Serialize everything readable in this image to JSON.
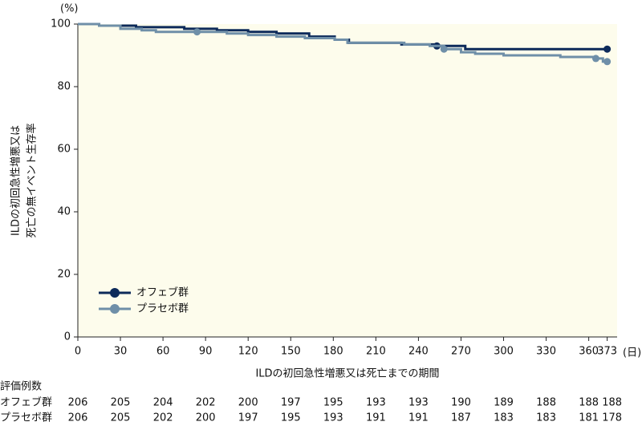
{
  "chart_data": {
    "type": "line",
    "step": "post",
    "y_unit": "(%)",
    "x_unit": "(日)",
    "ylabel": [
      "ILDの初回急性増悪又は",
      "死亡の無イベント生存率"
    ],
    "xlabel": "ILDの初回急性増悪又は死亡までの期間",
    "xlim": [
      0,
      380
    ],
    "ylim": [
      0,
      100
    ],
    "xticks": [
      0,
      30,
      60,
      90,
      120,
      150,
      180,
      210,
      240,
      270,
      300,
      330,
      360,
      373
    ],
    "yticks": [
      0,
      20,
      40,
      60,
      80,
      100
    ],
    "legend": "lower-left",
    "series": [
      {
        "name": "オフェブ群",
        "color": "#0d2a5a",
        "x": [
          0,
          15,
          41,
          75,
          98,
          120,
          140,
          163,
          181,
          191,
          228,
          253,
          273,
          373
        ],
        "values": [
          100,
          99.5,
          99,
          98.5,
          98,
          97.5,
          97,
          96,
          95,
          94,
          93.5,
          93,
          92,
          92
        ],
        "censor_x": [
          253,
          373
        ],
        "censor_values": [
          93,
          92
        ]
      },
      {
        "name": "プラセボ群",
        "color": "#6f8fa8",
        "x": [
          0,
          15,
          30,
          45,
          55,
          105,
          120,
          140,
          160,
          181,
          190,
          230,
          248,
          258,
          270,
          280,
          300,
          340,
          364,
          370,
          373
        ],
        "values": [
          100,
          99.5,
          98.5,
          98,
          97.5,
          97,
          96.5,
          96,
          95.5,
          95,
          94,
          93.5,
          93,
          92,
          91,
          90.5,
          90,
          89.5,
          89,
          88,
          88
        ],
        "censor_x": [
          84,
          258,
          365,
          373
        ],
        "censor_values": [
          97.5,
          92,
          89,
          88
        ]
      }
    ],
    "risk_table": {
      "title": "評価例数",
      "rows": [
        {
          "name": "オフェブ群",
          "counts": [
            206,
            205,
            204,
            202,
            200,
            197,
            195,
            193,
            193,
            190,
            189,
            188,
            188,
            188
          ]
        },
        {
          "name": "プラセボ群",
          "counts": [
            206,
            205,
            202,
            200,
            197,
            195,
            193,
            191,
            191,
            187,
            183,
            183,
            181,
            178
          ]
        }
      ]
    }
  }
}
